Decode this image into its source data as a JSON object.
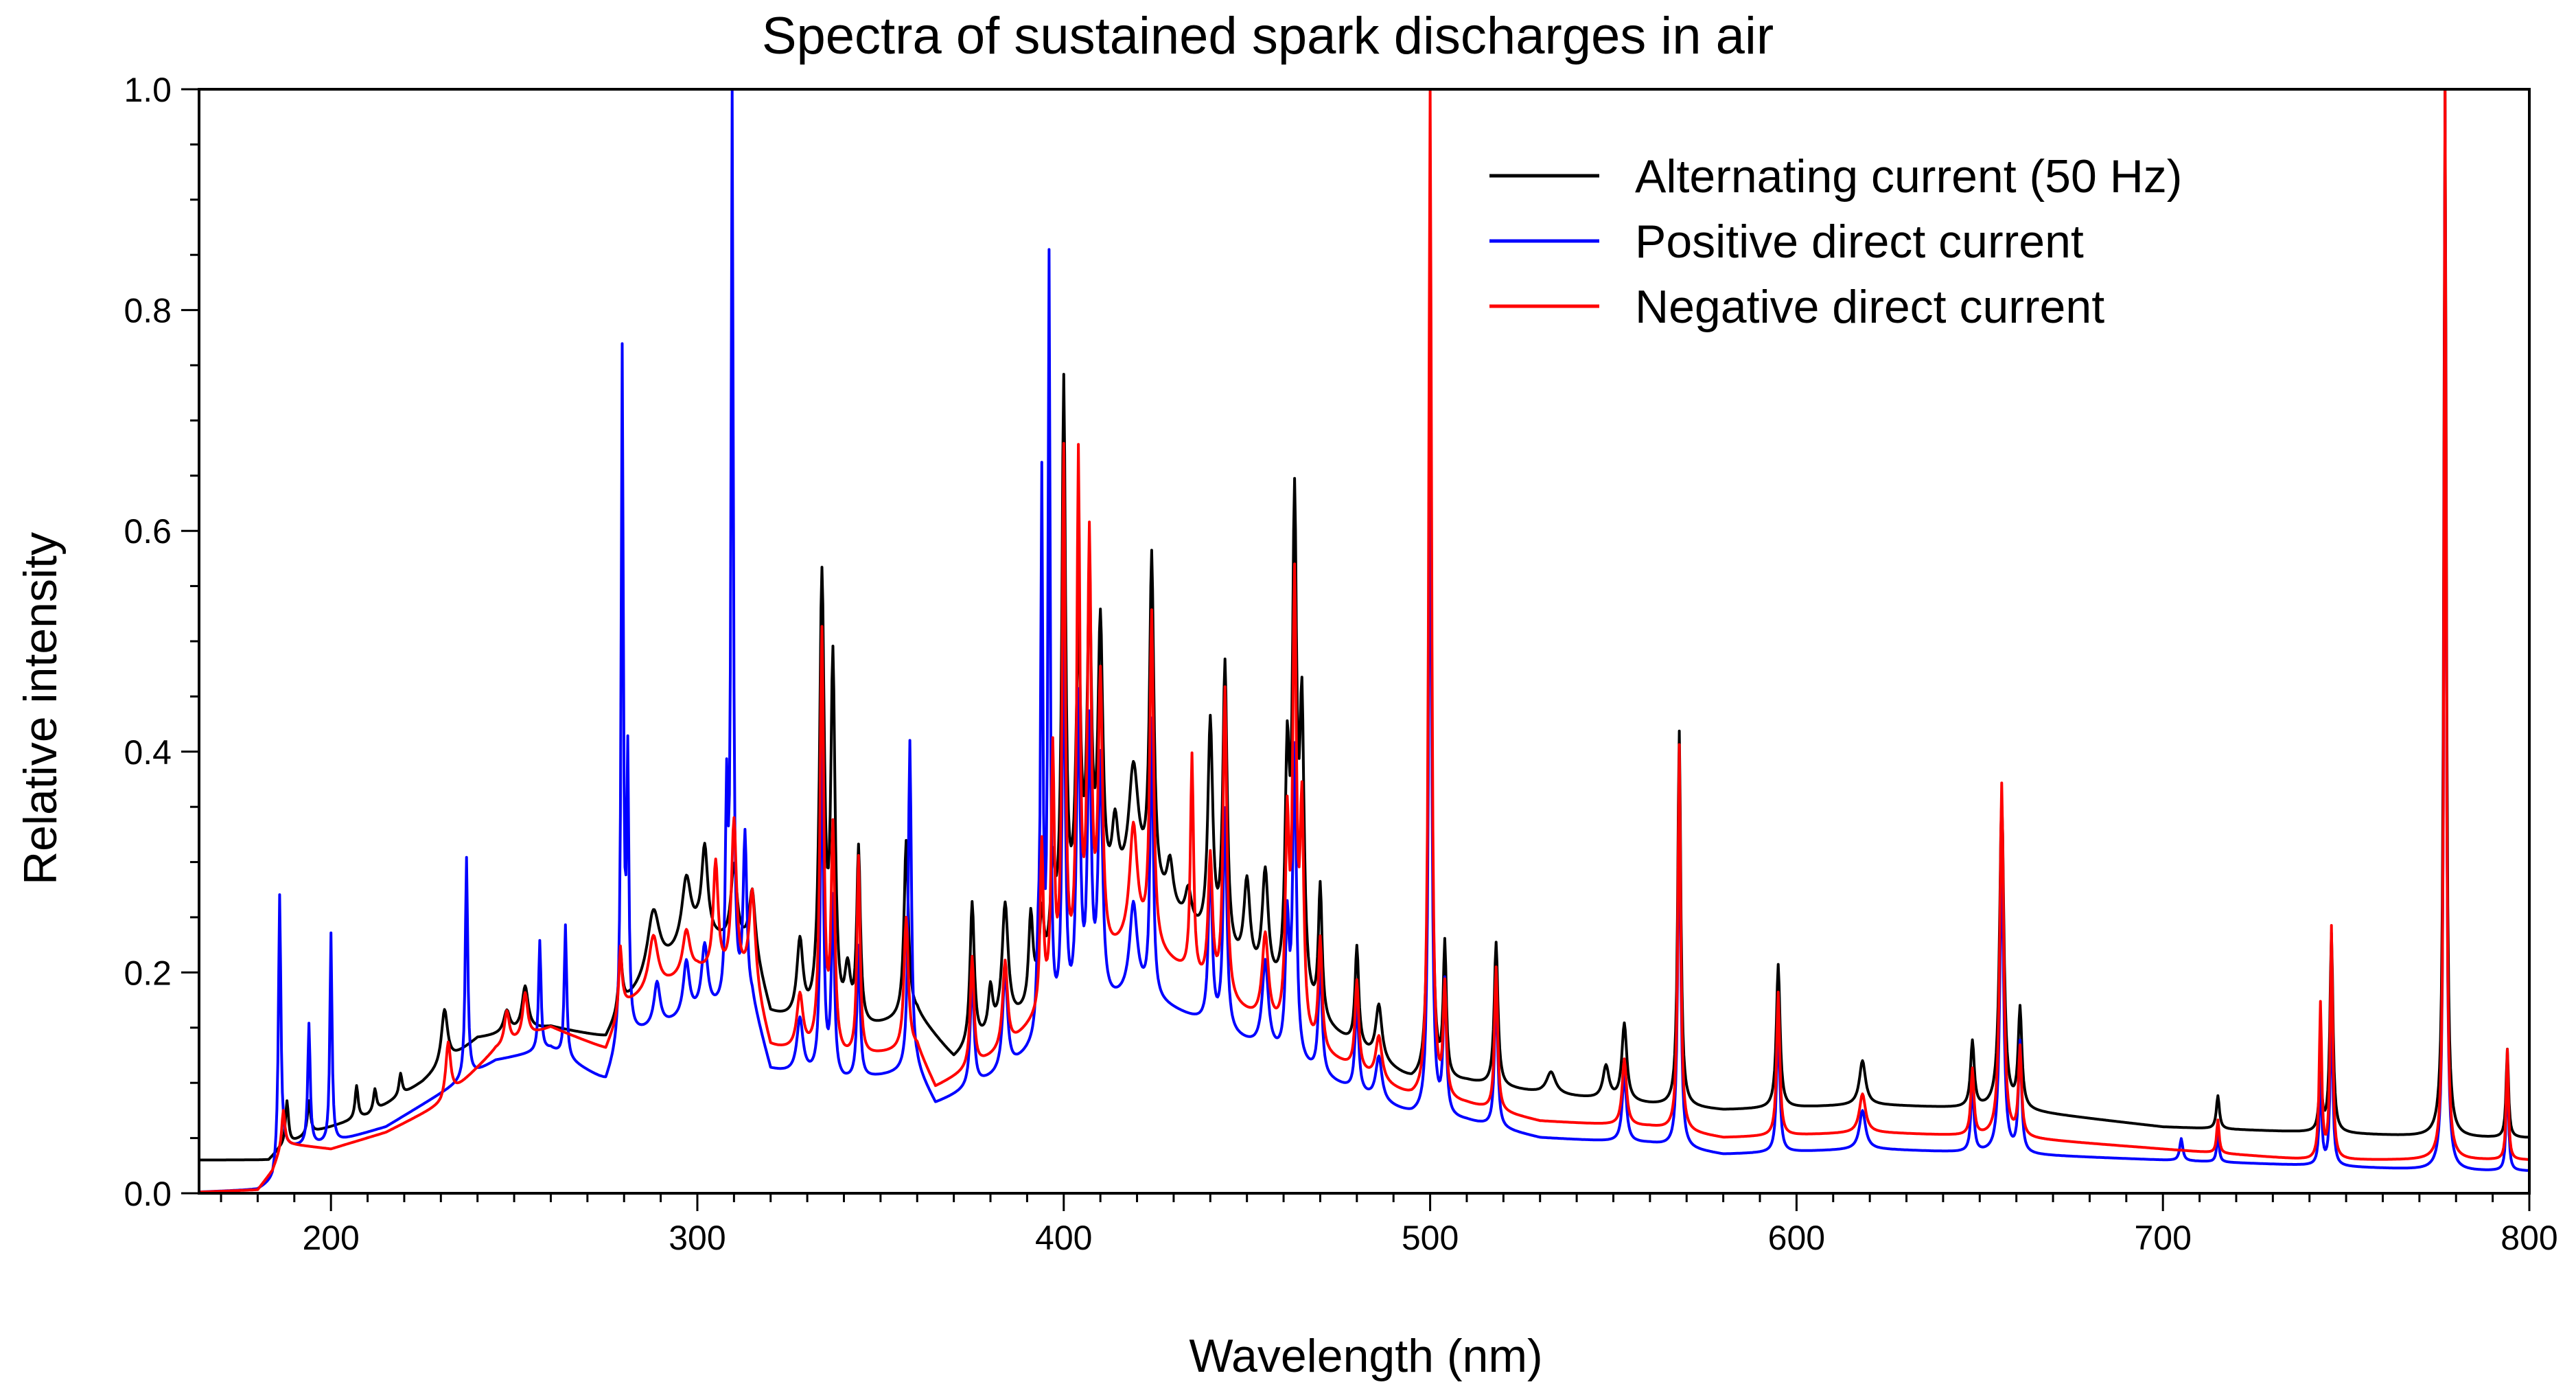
{
  "chart_data": {
    "type": "line",
    "title": "Spectra of sustained spark discharges in air",
    "xlabel": "Wavelength (nm)",
    "ylabel": "Relative intensity",
    "xlim": [
      164,
      800
    ],
    "ylim": [
      0,
      1.0
    ],
    "x_ticks": [
      200,
      300,
      400,
      500,
      600,
      700,
      800
    ],
    "x_tick_labels": [
      "200",
      "300",
      "400",
      "500",
      "600",
      "700",
      "800"
    ],
    "x_minor_step": 10,
    "y_ticks": [
      0.0,
      0.2,
      0.4,
      0.6,
      0.8,
      1.0
    ],
    "y_tick_labels": [
      "0.0",
      "0.2",
      "0.4",
      "0.6",
      "0.8",
      "1.0"
    ],
    "y_minor_step": 0.05,
    "grid": false,
    "legend_position": "top-right",
    "series": [
      {
        "name": "Alternating current (50 Hz)",
        "color": "#000000",
        "baseline": [
          [
            164,
            0.03
          ],
          [
            183,
            0.03
          ],
          [
            186,
            0.04
          ],
          [
            195,
            0.055
          ],
          [
            210,
            0.07
          ],
          [
            225,
            0.1
          ],
          [
            240,
            0.14
          ],
          [
            260,
            0.15
          ],
          [
            275,
            0.14
          ],
          [
            280,
            0.17
          ],
          [
            300,
            0.23
          ],
          [
            315,
            0.22
          ],
          [
            320,
            0.16
          ],
          [
            340,
            0.14
          ],
          [
            360,
            0.16
          ],
          [
            370,
            0.12
          ],
          [
            390,
            0.16
          ],
          [
            400,
            0.22
          ],
          [
            420,
            0.28
          ],
          [
            440,
            0.22
          ],
          [
            460,
            0.17
          ],
          [
            480,
            0.13
          ],
          [
            495,
            0.1
          ],
          [
            510,
            0.1
          ],
          [
            530,
            0.09
          ],
          [
            560,
            0.08
          ],
          [
            580,
            0.075
          ],
          [
            620,
            0.08
          ],
          [
            660,
            0.075
          ],
          [
            700,
            0.06
          ],
          [
            740,
            0.055
          ],
          [
            780,
            0.05
          ],
          [
            800,
            0.05
          ]
        ],
        "peaks": [
          [
            188,
            0.04,
            0.5
          ],
          [
            194,
            0.03,
            0.5
          ],
          [
            207,
            0.03,
            0.5
          ],
          [
            212,
            0.02,
            0.5
          ],
          [
            219,
            0.02,
            0.5
          ],
          [
            231,
            0.05,
            1
          ],
          [
            248,
            0.02,
            1
          ],
          [
            253,
            0.04,
            1
          ],
          [
            279,
            0.05,
            0.6
          ],
          [
            288,
            0.06,
            2
          ],
          [
            297,
            0.06,
            1.5
          ],
          [
            302,
            0.08,
            1
          ],
          [
            310,
            0.07,
            1
          ],
          [
            315,
            0.05,
            1
          ],
          [
            328,
            0.07,
            1
          ],
          [
            334,
            0.4,
            0.8
          ],
          [
            337,
            0.32,
            0.7
          ],
          [
            341,
            0.05,
            1
          ],
          [
            344,
            0.16,
            0.6
          ],
          [
            357,
            0.16,
            0.7
          ],
          [
            375,
            0.13,
            0.7
          ],
          [
            380,
            0.04,
            0.7
          ],
          [
            384,
            0.11,
            1
          ],
          [
            391,
            0.08,
            0.7
          ],
          [
            394,
            0.06,
            0.7
          ],
          [
            397,
            0.08,
            0.7
          ],
          [
            400,
            0.5,
            0.6
          ],
          [
            404,
            0.25,
            0.8
          ],
          [
            407,
            0.28,
            0.7
          ],
          [
            410,
            0.25,
            0.8
          ],
          [
            414,
            0.06,
            1
          ],
          [
            419,
            0.1,
            1.5
          ],
          [
            424,
            0.3,
            0.7
          ],
          [
            429,
            0.04,
            1
          ],
          [
            434,
            0.03,
            1
          ],
          [
            440,
            0.2,
            0.8
          ],
          [
            444,
            0.26,
            0.7
          ],
          [
            450,
            0.08,
            1
          ],
          [
            455,
            0.1,
            1
          ],
          [
            461,
            0.2,
            0.7
          ],
          [
            463,
            0.43,
            0.7
          ],
          [
            465,
            0.25,
            0.7
          ],
          [
            470,
            0.12,
            0.6
          ],
          [
            480,
            0.09,
            0.6
          ],
          [
            486,
            0.05,
            1
          ],
          [
            500,
            0.63,
            0.5
          ],
          [
            504,
            0.12,
            0.5
          ],
          [
            518,
            0.13,
            0.6
          ],
          [
            533,
            0.02,
            1.5
          ],
          [
            548,
            0.03,
            1
          ],
          [
            553,
            0.07,
            0.8
          ],
          [
            568,
            0.34,
            0.5
          ],
          [
            595,
            0.13,
            0.6
          ],
          [
            618,
            0.04,
            1
          ],
          [
            648,
            0.06,
            0.6
          ],
          [
            656,
            0.28,
            0.7
          ],
          [
            661,
            0.09,
            0.6
          ],
          [
            715,
            0.03,
            0.5
          ],
          [
            743,
            0.05,
            0.5
          ],
          [
            746,
            0.18,
            0.5
          ],
          [
            777,
            0.95,
            0.4
          ],
          [
            794,
            0.08,
            0.4
          ]
        ]
      },
      {
        "name": "Positive direct current",
        "color": "#0000ff",
        "baseline": [
          [
            164,
            0.001
          ],
          [
            180,
            0.003
          ],
          [
            184,
            0.01
          ],
          [
            187,
            0.04
          ],
          [
            200,
            0.045
          ],
          [
            215,
            0.06
          ],
          [
            230,
            0.09
          ],
          [
            245,
            0.12
          ],
          [
            260,
            0.13
          ],
          [
            275,
            0.1
          ],
          [
            280,
            0.14
          ],
          [
            300,
            0.16
          ],
          [
            315,
            0.17
          ],
          [
            320,
            0.11
          ],
          [
            340,
            0.1
          ],
          [
            360,
            0.11
          ],
          [
            365,
            0.08
          ],
          [
            385,
            0.11
          ],
          [
            400,
            0.15
          ],
          [
            420,
            0.18
          ],
          [
            440,
            0.15
          ],
          [
            460,
            0.12
          ],
          [
            480,
            0.09
          ],
          [
            495,
            0.07
          ],
          [
            510,
            0.065
          ],
          [
            530,
            0.05
          ],
          [
            560,
            0.045
          ],
          [
            580,
            0.035
          ],
          [
            620,
            0.04
          ],
          [
            660,
            0.035
          ],
          [
            700,
            0.03
          ],
          [
            740,
            0.025
          ],
          [
            780,
            0.02
          ],
          [
            800,
            0.02
          ]
        ],
        "peaks": [
          [
            186,
            0.24,
            0.4
          ],
          [
            194,
            0.11,
            0.4
          ],
          [
            200,
            0.19,
            0.35
          ],
          [
            237,
            0.2,
            0.4
          ],
          [
            257,
            0.1,
            0.4
          ],
          [
            264,
            0.12,
            0.4
          ],
          [
            279.5,
            0.62,
            0.35
          ],
          [
            281,
            0.24,
            0.35
          ],
          [
            289,
            0.04,
            1
          ],
          [
            297,
            0.05,
            1
          ],
          [
            302,
            0.06,
            1
          ],
          [
            308,
            0.18,
            0.4
          ],
          [
            309.5,
            0.84,
            0.35
          ],
          [
            313,
            0.15,
            0.6
          ],
          [
            328,
            0.05,
            1
          ],
          [
            334,
            0.3,
            0.5
          ],
          [
            337,
            0.16,
            0.5
          ],
          [
            344,
            0.12,
            0.5
          ],
          [
            358,
            0.3,
            0.5
          ],
          [
            375,
            0.1,
            0.6
          ],
          [
            384,
            0.09,
            0.8
          ],
          [
            393,
            0.06,
            0.5
          ],
          [
            394,
            0.49,
            0.35
          ],
          [
            396,
            0.69,
            0.35
          ],
          [
            400,
            0.35,
            0.5
          ],
          [
            404,
            0.28,
            0.6
          ],
          [
            407,
            0.25,
            0.6
          ],
          [
            410,
            0.22,
            0.7
          ],
          [
            419,
            0.08,
            1.2
          ],
          [
            424,
            0.25,
            0.5
          ],
          [
            440,
            0.15,
            0.6
          ],
          [
            444,
            0.2,
            0.6
          ],
          [
            455,
            0.08,
            1
          ],
          [
            461,
            0.12,
            0.6
          ],
          [
            463,
            0.28,
            0.6
          ],
          [
            470,
            0.1,
            0.6
          ],
          [
            480,
            0.08,
            0.6
          ],
          [
            486,
            0.04,
            1
          ],
          [
            500,
            0.68,
            0.45
          ],
          [
            504,
            0.12,
            0.5
          ],
          [
            518,
            0.13,
            0.5
          ],
          [
            553,
            0.06,
            0.7
          ],
          [
            568,
            0.33,
            0.45
          ],
          [
            595,
            0.12,
            0.5
          ],
          [
            618,
            0.035,
            1
          ],
          [
            648,
            0.06,
            0.5
          ],
          [
            656,
            0.27,
            0.6
          ],
          [
            661,
            0.1,
            0.5
          ],
          [
            705,
            0.02,
            0.5
          ],
          [
            715,
            0.025,
            0.4
          ],
          [
            743,
            0.08,
            0.4
          ],
          [
            746,
            0.15,
            0.4
          ],
          [
            777,
            0.96,
            0.35
          ],
          [
            794,
            0.1,
            0.35
          ]
        ]
      },
      {
        "name": "Negative direct current",
        "color": "#ff0000",
        "baseline": [
          [
            164,
            0.001
          ],
          [
            180,
            0.003
          ],
          [
            184,
            0.02
          ],
          [
            187,
            0.045
          ],
          [
            200,
            0.04
          ],
          [
            215,
            0.055
          ],
          [
            230,
            0.08
          ],
          [
            245,
            0.13
          ],
          [
            260,
            0.15
          ],
          [
            275,
            0.13
          ],
          [
            280,
            0.17
          ],
          [
            300,
            0.2
          ],
          [
            315,
            0.19
          ],
          [
            320,
            0.13
          ],
          [
            340,
            0.12
          ],
          [
            360,
            0.13
          ],
          [
            365,
            0.095
          ],
          [
            385,
            0.13
          ],
          [
            400,
            0.18
          ],
          [
            420,
            0.23
          ],
          [
            440,
            0.18
          ],
          [
            460,
            0.14
          ],
          [
            480,
            0.11
          ],
          [
            495,
            0.085
          ],
          [
            510,
            0.08
          ],
          [
            530,
            0.065
          ],
          [
            560,
            0.06
          ],
          [
            580,
            0.05
          ],
          [
            620,
            0.055
          ],
          [
            660,
            0.05
          ],
          [
            700,
            0.04
          ],
          [
            740,
            0.03
          ],
          [
            780,
            0.03
          ],
          [
            800,
            0.03
          ]
        ],
        "peaks": [
          [
            187,
            0.03,
            0.5
          ],
          [
            232,
            0.05,
            0.8
          ],
          [
            248,
            0.03,
            0.8
          ],
          [
            253,
            0.04,
            0.8
          ],
          [
            279,
            0.06,
            0.5
          ],
          [
            288,
            0.05,
            1.5
          ],
          [
            297,
            0.04,
            1.2
          ],
          [
            305,
            0.1,
            0.8
          ],
          [
            310,
            0.14,
            0.8
          ],
          [
            315,
            0.08,
            1
          ],
          [
            328,
            0.05,
            1
          ],
          [
            334,
            0.38,
            0.6
          ],
          [
            337,
            0.2,
            0.6
          ],
          [
            344,
            0.18,
            0.5
          ],
          [
            357,
            0.12,
            0.7
          ],
          [
            375,
            0.1,
            0.6
          ],
          [
            384,
            0.08,
            0.8
          ],
          [
            394,
            0.15,
            0.5
          ],
          [
            397,
            0.22,
            0.5
          ],
          [
            400,
            0.48,
            0.5
          ],
          [
            404,
            0.46,
            0.5
          ],
          [
            407,
            0.38,
            0.6
          ],
          [
            410,
            0.25,
            0.7
          ],
          [
            419,
            0.1,
            1.2
          ],
          [
            424,
            0.3,
            0.6
          ],
          [
            435,
            0.2,
            0.5
          ],
          [
            440,
            0.12,
            0.7
          ],
          [
            444,
            0.28,
            0.6
          ],
          [
            455,
            0.08,
            1
          ],
          [
            461,
            0.18,
            0.6
          ],
          [
            463,
            0.4,
            0.6
          ],
          [
            465,
            0.2,
            0.6
          ],
          [
            470,
            0.1,
            0.6
          ],
          [
            480,
            0.08,
            0.6
          ],
          [
            486,
            0.04,
            1
          ],
          [
            500,
            0.92,
            0.45
          ],
          [
            504,
            0.1,
            0.5
          ],
          [
            518,
            0.13,
            0.5
          ],
          [
            553,
            0.06,
            0.7
          ],
          [
            568,
            0.35,
            0.45
          ],
          [
            595,
            0.13,
            0.5
          ],
          [
            618,
            0.035,
            1
          ],
          [
            648,
            0.06,
            0.5
          ],
          [
            656,
            0.32,
            0.6
          ],
          [
            661,
            0.08,
            0.5
          ],
          [
            715,
            0.03,
            0.4
          ],
          [
            743,
            0.14,
            0.4
          ],
          [
            746,
            0.21,
            0.4
          ],
          [
            777,
            0.97,
            0.35
          ],
          [
            794,
            0.1,
            0.35
          ]
        ]
      }
    ]
  }
}
